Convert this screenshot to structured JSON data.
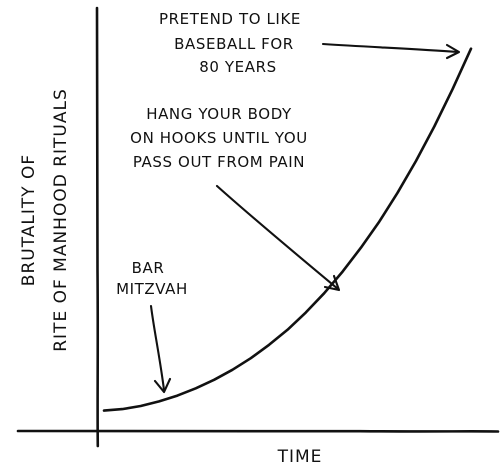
{
  "chart_data": {
    "type": "line",
    "xlabel": "TIME",
    "ylabel_lines": [
      "BRUTALITY OF",
      "RITE OF MANHOOD RITUALS"
    ],
    "grid": false,
    "ticks": false,
    "series": [
      {
        "x": [
          0,
          0.05,
          0.1,
          0.15,
          0.2,
          0.25,
          0.3,
          0.35,
          0.4,
          0.45,
          0.5,
          0.55,
          0.6,
          0.65,
          0.7,
          0.75,
          0.8,
          0.85,
          0.9,
          0.95,
          1.0
        ],
        "values": [
          0.04,
          0.044,
          0.052,
          0.064,
          0.079,
          0.098,
          0.12,
          0.146,
          0.176,
          0.211,
          0.25,
          0.295,
          0.345,
          0.401,
          0.463,
          0.531,
          0.606,
          0.688,
          0.778,
          0.875,
          0.98
        ]
      }
    ],
    "xlim": [
      0,
      1
    ],
    "ylim": [
      0,
      1
    ],
    "annotations": [
      {
        "lines": [
          "BAR",
          "MITZVAH"
        ],
        "target": {
          "x": 0.16,
          "y": 0.07
        }
      },
      {
        "lines": [
          "HANG YOUR BODY",
          "ON HOOKS UNTIL YOU",
          "PASS OUT FROM PAIN"
        ],
        "target": {
          "x": 0.62,
          "y": 0.39
        }
      },
      {
        "lines": [
          "PRETEND TO LIKE",
          "BASEBALL FOR",
          "80 YEARS"
        ],
        "target": {
          "x": 0.98,
          "y": 0.95
        }
      }
    ]
  },
  "colors": {
    "ink": "#111111",
    "background": "#ffffff"
  }
}
